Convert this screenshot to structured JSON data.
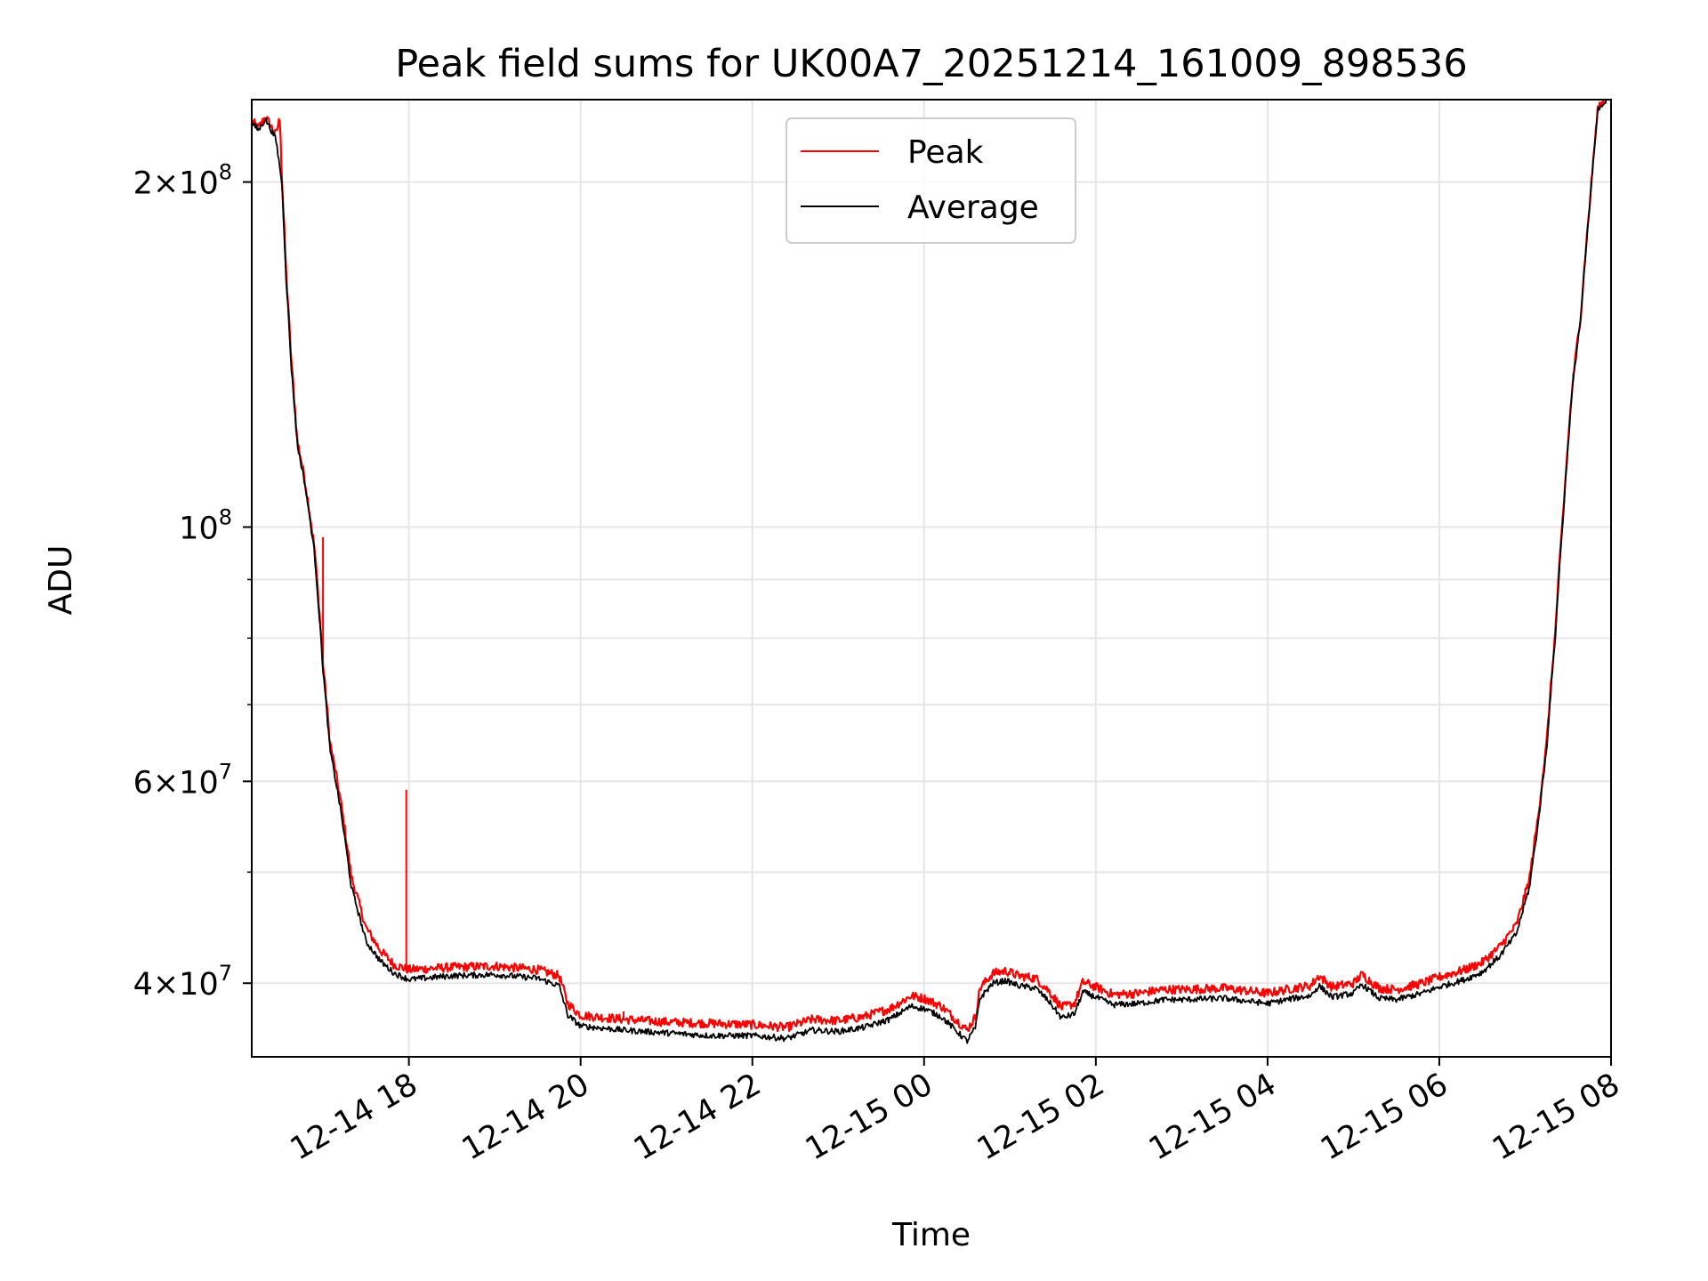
{
  "chart_data": {
    "type": "line",
    "title": "Peak field sums for UK00A7_20251214_161009_898536",
    "xlabel": "Time",
    "ylabel": "ADU",
    "yscale": "log",
    "ylim": [
      34500000,
      236000000
    ],
    "xlim_hours_since_2025_12_14_00_00": [
      16.17,
      32.0
    ],
    "grid": true,
    "legend": {
      "position": "top-center",
      "entries": [
        "Peak",
        "Average"
      ]
    },
    "colors": {
      "Peak": "#ff0000",
      "Average": "#000000"
    },
    "x_ticks": [
      {
        "label": "12-14 18",
        "hour": 18
      },
      {
        "label": "12-14 20",
        "hour": 20
      },
      {
        "label": "12-14 22",
        "hour": 22
      },
      {
        "label": "12-15 00",
        "hour": 24
      },
      {
        "label": "12-15 02",
        "hour": 26
      },
      {
        "label": "12-15 04",
        "hour": 28
      },
      {
        "label": "12-15 06",
        "hour": 30
      },
      {
        "label": "12-15 08",
        "hour": 32
      }
    ],
    "y_ticks": [
      {
        "base": "4",
        "exp": "7",
        "value": 40000000
      },
      {
        "base": "6",
        "exp": "7",
        "value": 60000000
      },
      {
        "base": "",
        "exp": "8",
        "value": 100000000
      },
      {
        "base": "2",
        "exp": "8",
        "value": 200000000
      }
    ],
    "y_minor_values": [
      50000000,
      70000000,
      80000000,
      90000000
    ],
    "series": [
      {
        "name": "Average",
        "points": [
          [
            16.17,
            225000000
          ],
          [
            16.25,
            222000000
          ],
          [
            16.33,
            227000000
          ],
          [
            16.45,
            218000000
          ],
          [
            16.52,
            200000000
          ],
          [
            16.57,
            165000000
          ],
          [
            16.63,
            138000000
          ],
          [
            16.7,
            118000000
          ],
          [
            16.78,
            110000000
          ],
          [
            16.9,
            95000000
          ],
          [
            17.0,
            75000000
          ],
          [
            17.08,
            64000000
          ],
          [
            17.2,
            57000000
          ],
          [
            17.33,
            48500000
          ],
          [
            17.5,
            43500000
          ],
          [
            17.67,
            41800000
          ],
          [
            17.83,
            40800000
          ],
          [
            18.0,
            40300000
          ],
          [
            18.5,
            40600000
          ],
          [
            19.0,
            40700000
          ],
          [
            19.5,
            40400000
          ],
          [
            19.75,
            39800000
          ],
          [
            19.85,
            37500000
          ],
          [
            20.0,
            36700000
          ],
          [
            20.5,
            36400000
          ],
          [
            21.0,
            36200000
          ],
          [
            21.5,
            36000000
          ],
          [
            22.0,
            36000000
          ],
          [
            22.4,
            35800000
          ],
          [
            22.7,
            36400000
          ],
          [
            23.0,
            36300000
          ],
          [
            23.3,
            36600000
          ],
          [
            23.6,
            37200000
          ],
          [
            23.85,
            38200000
          ],
          [
            24.0,
            38000000
          ],
          [
            24.2,
            37400000
          ],
          [
            24.4,
            36200000
          ],
          [
            24.5,
            35600000
          ],
          [
            24.6,
            36600000
          ],
          [
            24.65,
            38800000
          ],
          [
            24.8,
            40000000
          ],
          [
            24.95,
            40200000
          ],
          [
            25.1,
            39800000
          ],
          [
            25.3,
            39600000
          ],
          [
            25.45,
            38600000
          ],
          [
            25.6,
            37300000
          ],
          [
            25.75,
            37600000
          ],
          [
            25.85,
            39300000
          ],
          [
            26.0,
            38900000
          ],
          [
            26.2,
            38300000
          ],
          [
            26.5,
            38400000
          ],
          [
            26.8,
            38700000
          ],
          [
            27.0,
            38700000
          ],
          [
            27.5,
            38800000
          ],
          [
            28.0,
            38400000
          ],
          [
            28.3,
            38800000
          ],
          [
            28.5,
            39000000
          ],
          [
            28.6,
            39800000
          ],
          [
            28.75,
            38900000
          ],
          [
            29.0,
            39200000
          ],
          [
            29.1,
            39900000
          ],
          [
            29.3,
            38800000
          ],
          [
            29.5,
            38700000
          ],
          [
            29.8,
            39200000
          ],
          [
            30.0,
            39700000
          ],
          [
            30.3,
            40300000
          ],
          [
            30.5,
            40900000
          ],
          [
            30.7,
            42200000
          ],
          [
            30.9,
            44200000
          ],
          [
            31.05,
            48500000
          ],
          [
            31.15,
            55000000
          ],
          [
            31.25,
            64000000
          ],
          [
            31.35,
            80000000
          ],
          [
            31.45,
            104000000
          ],
          [
            31.55,
            132000000
          ],
          [
            31.65,
            153000000
          ],
          [
            31.75,
            190000000
          ],
          [
            31.85,
            232000000
          ],
          [
            31.95,
            236000000
          ]
        ]
      },
      {
        "name": "Peak",
        "points": [
          [
            16.17,
            226000000
          ],
          [
            16.25,
            223000000
          ],
          [
            16.33,
            228000000
          ],
          [
            16.45,
            220000000
          ],
          [
            16.5,
            228000000
          ],
          [
            16.52,
            202000000
          ],
          [
            16.57,
            167000000
          ],
          [
            16.63,
            140000000
          ],
          [
            16.7,
            119000000
          ],
          [
            16.78,
            111000000
          ],
          [
            16.9,
            96000000
          ],
          [
            17.0,
            76000000
          ],
          [
            17.08,
            65000000
          ],
          [
            17.2,
            58000000
          ],
          [
            17.33,
            49500000
          ],
          [
            17.5,
            44700000
          ],
          [
            17.67,
            42700000
          ],
          [
            17.83,
            41500000
          ],
          [
            18.0,
            41100000
          ],
          [
            18.5,
            41300000
          ],
          [
            19.0,
            41400000
          ],
          [
            19.5,
            41100000
          ],
          [
            19.75,
            40600000
          ],
          [
            19.85,
            38400000
          ],
          [
            20.0,
            37500000
          ],
          [
            20.5,
            37200000
          ],
          [
            21.0,
            37000000
          ],
          [
            21.5,
            36900000
          ],
          [
            22.0,
            36800000
          ],
          [
            22.4,
            36600000
          ],
          [
            22.7,
            37200000
          ],
          [
            23.0,
            37100000
          ],
          [
            23.3,
            37400000
          ],
          [
            23.6,
            38000000
          ],
          [
            23.85,
            39000000
          ],
          [
            24.0,
            38800000
          ],
          [
            24.2,
            38200000
          ],
          [
            24.4,
            37000000
          ],
          [
            24.5,
            36400000
          ],
          [
            24.6,
            37400000
          ],
          [
            24.65,
            39600000
          ],
          [
            24.8,
            40800000
          ],
          [
            24.95,
            41000000
          ],
          [
            25.1,
            40600000
          ],
          [
            25.3,
            40400000
          ],
          [
            25.45,
            39400000
          ],
          [
            25.6,
            38100000
          ],
          [
            25.75,
            38400000
          ],
          [
            25.85,
            40100000
          ],
          [
            26.0,
            39700000
          ],
          [
            26.2,
            39100000
          ],
          [
            26.5,
            39200000
          ],
          [
            26.8,
            39500000
          ],
          [
            27.0,
            39500000
          ],
          [
            27.5,
            39600000
          ],
          [
            28.0,
            39200000
          ],
          [
            28.3,
            39600000
          ],
          [
            28.5,
            39800000
          ],
          [
            28.6,
            40600000
          ],
          [
            28.75,
            39700000
          ],
          [
            29.0,
            40000000
          ],
          [
            29.1,
            40700000
          ],
          [
            29.3,
            39600000
          ],
          [
            29.5,
            39500000
          ],
          [
            29.8,
            40000000
          ],
          [
            30.0,
            40500000
          ],
          [
            30.3,
            41100000
          ],
          [
            30.5,
            41700000
          ],
          [
            30.7,
            43000000
          ],
          [
            30.9,
            45000000
          ],
          [
            31.05,
            49300000
          ],
          [
            31.15,
            55800000
          ],
          [
            31.25,
            64800000
          ],
          [
            31.35,
            80800000
          ],
          [
            31.45,
            104800000
          ],
          [
            31.55,
            132800000
          ],
          [
            31.65,
            153800000
          ],
          [
            31.75,
            190800000
          ],
          [
            31.85,
            233000000
          ],
          [
            31.95,
            236000000
          ]
        ],
        "spikes": [
          [
            17.0,
            98000000
          ],
          [
            17.97,
            59000000
          ],
          [
            20.5,
            37800000
          ]
        ]
      }
    ]
  }
}
